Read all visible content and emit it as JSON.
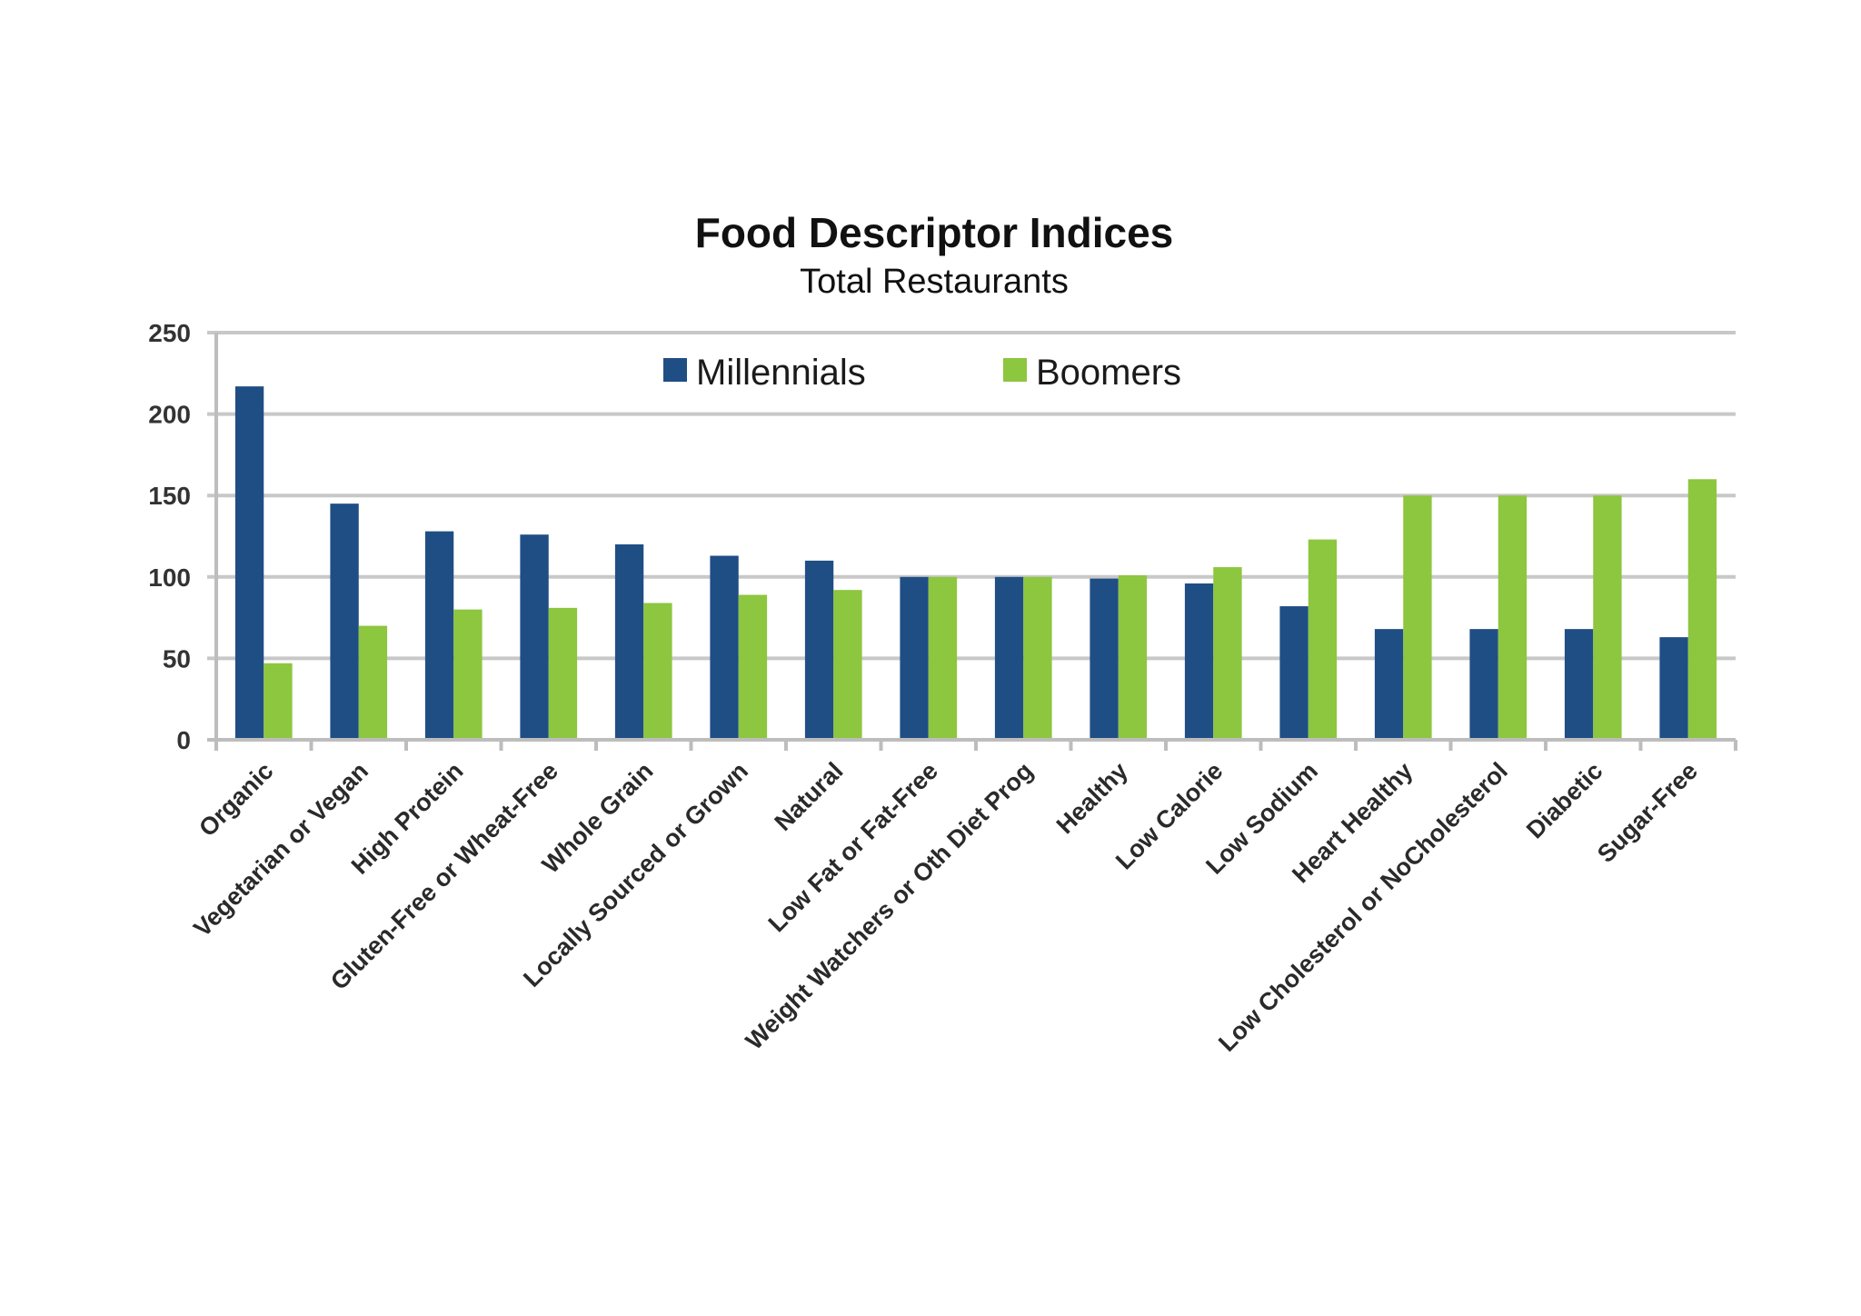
{
  "chart_data": {
    "type": "bar",
    "title": "Food Descriptor Indices",
    "subtitle": "Total Restaurants",
    "xlabel": "",
    "ylabel": "",
    "ylim": [
      0,
      250
    ],
    "yticks": [
      "0",
      "50",
      "100",
      "150",
      "200",
      "250"
    ],
    "grid": true,
    "legend_position": "top-center",
    "categories": [
      "Organic",
      "Vegetarian or Vegan",
      "High Protein",
      "Gluten-Free or Wheat-Free",
      "Whole Grain",
      "Locally Sourced or Grown",
      "Natural",
      "Low Fat or Fat-Free",
      "Weight Watchers or Oth Diet Prog",
      "Healthy",
      "Low Calorie",
      "Low Sodium",
      "Heart Healthy",
      "Low Cholesterol or NoCholesterol",
      "Diabetic",
      "Sugar-Free"
    ],
    "series": [
      {
        "name": "Millennials",
        "color": "#1f4e85",
        "values": [
          217,
          145,
          128,
          126,
          120,
          113,
          110,
          100,
          100,
          99,
          96,
          82,
          68,
          68,
          68,
          63
        ]
      },
      {
        "name": "Boomers",
        "color": "#8dc63f",
        "values": [
          47,
          70,
          80,
          81,
          84,
          89,
          92,
          100,
          100,
          101,
          106,
          123,
          150,
          150,
          150,
          160
        ]
      }
    ]
  }
}
